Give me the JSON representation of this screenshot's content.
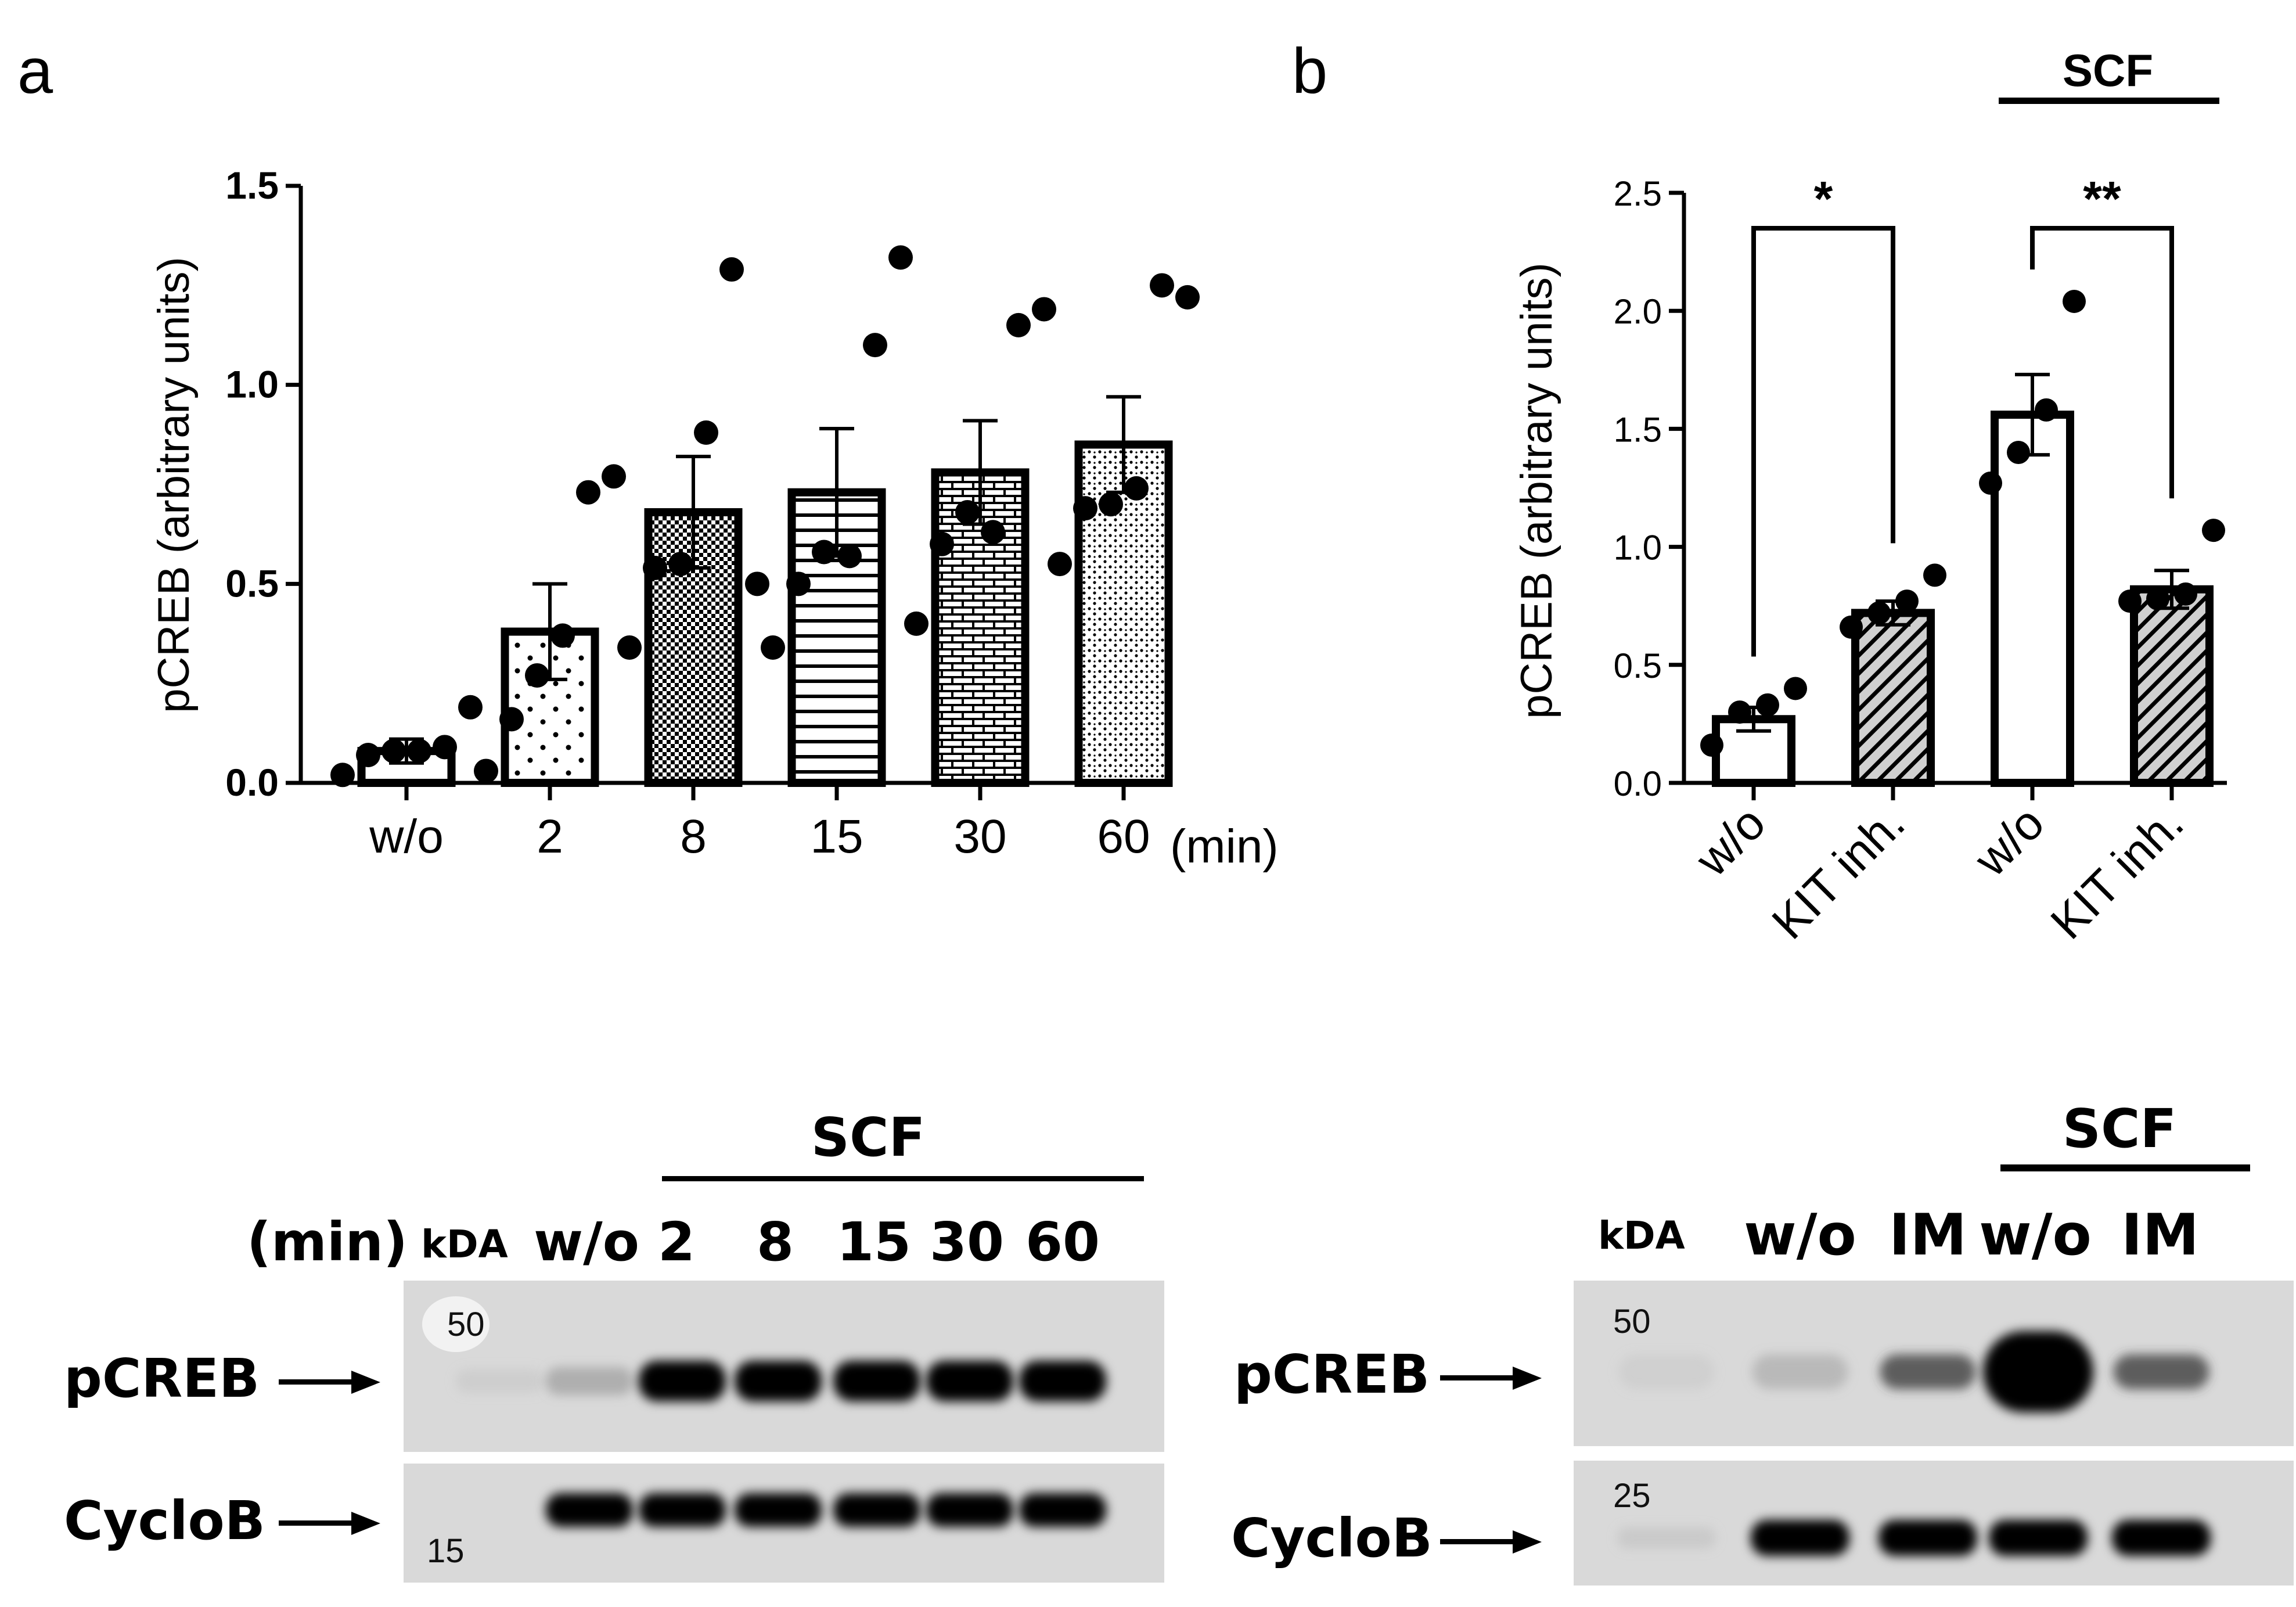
{
  "panel_a": {
    "letter": "a",
    "chart_data": {
      "type": "bar",
      "categories": [
        "w/o",
        "2",
        "8",
        "15",
        "30",
        "60"
      ],
      "unit_suffix": "(min)",
      "ylabel": "pCREB (arbitrary units)",
      "ylim": [
        0,
        1.5
      ],
      "yticks": [
        "0.0",
        "0.5",
        "1.0",
        "1.5"
      ],
      "means": [
        0.08,
        0.38,
        0.68,
        0.73,
        0.78,
        0.85
      ],
      "sem": [
        0.03,
        0.12,
        0.14,
        0.16,
        0.13,
        0.12
      ],
      "points": [
        [
          0.02,
          0.07,
          0.08,
          0.08,
          0.09,
          0.19
        ],
        [
          0.03,
          0.16,
          0.27,
          0.37,
          0.73,
          0.77
        ],
        [
          0.34,
          0.54,
          0.55,
          0.88,
          1.29,
          0.5
        ],
        [
          0.34,
          0.5,
          0.58,
          0.57,
          1.1,
          1.32
        ],
        [
          0.4,
          0.6,
          0.68,
          0.63,
          1.15,
          1.19
        ],
        [
          0.55,
          0.69,
          0.7,
          0.74,
          1.25,
          1.22
        ]
      ],
      "patterns": [
        "white",
        "sparse-dots",
        "dense-check",
        "horizontal-lines",
        "bricks",
        "dense-dots"
      ]
    }
  },
  "panel_b": {
    "letter": "b",
    "scf_label": "SCF",
    "chart_data": {
      "type": "bar",
      "categories": [
        "w/o",
        "KIT inh.",
        "w/o",
        "KIT inh."
      ],
      "ylabel": "pCREB (arbitrary units)",
      "ylim": [
        0,
        2.5
      ],
      "yticks": [
        "0.0",
        "0.5",
        "1.0",
        "1.5",
        "2.0",
        "2.5"
      ],
      "means": [
        0.27,
        0.72,
        1.56,
        0.82
      ],
      "sem": [
        0.05,
        0.05,
        0.17,
        0.08
      ],
      "points": [
        [
          0.16,
          0.3,
          0.33,
          0.4
        ],
        [
          0.66,
          0.72,
          0.77,
          0.88
        ],
        [
          1.27,
          1.4,
          1.58,
          2.04
        ],
        [
          0.77,
          0.78,
          0.8,
          1.07
        ]
      ],
      "patterns": [
        "white",
        "hatched",
        "white",
        "hatched"
      ],
      "significance": [
        {
          "label": "*",
          "between": [
            0,
            1
          ]
        },
        {
          "label": "**",
          "between": [
            2,
            3
          ]
        }
      ]
    }
  },
  "blot_a": {
    "scf_label": "SCF",
    "min_label": "(min)",
    "kda_label": "kDA",
    "lanes": [
      "w/o",
      "2",
      "8",
      "15",
      "30",
      "60"
    ],
    "marker_top": "50",
    "marker_bottom": "15",
    "row_labels": [
      "pCREB",
      "CycloB"
    ],
    "pcreb_intensity": [
      0.06,
      0.3,
      1,
      1,
      1,
      1,
      1
    ],
    "cyclob_intensity": [
      0,
      1,
      1,
      1,
      1,
      1,
      1
    ]
  },
  "blot_b": {
    "scf_label": "SCF",
    "kda_label": "kDA",
    "lanes": [
      "w/o",
      "IM",
      "w/o",
      "IM"
    ],
    "marker_top": "50",
    "marker_bottom": "25",
    "row_labels": [
      "pCREB",
      "CycloB"
    ],
    "pcreb_intensity": [
      0.05,
      0.25,
      0.7,
      1.0,
      0.7
    ],
    "cyclob_intensity": [
      0.1,
      1,
      1,
      1,
      1
    ]
  }
}
